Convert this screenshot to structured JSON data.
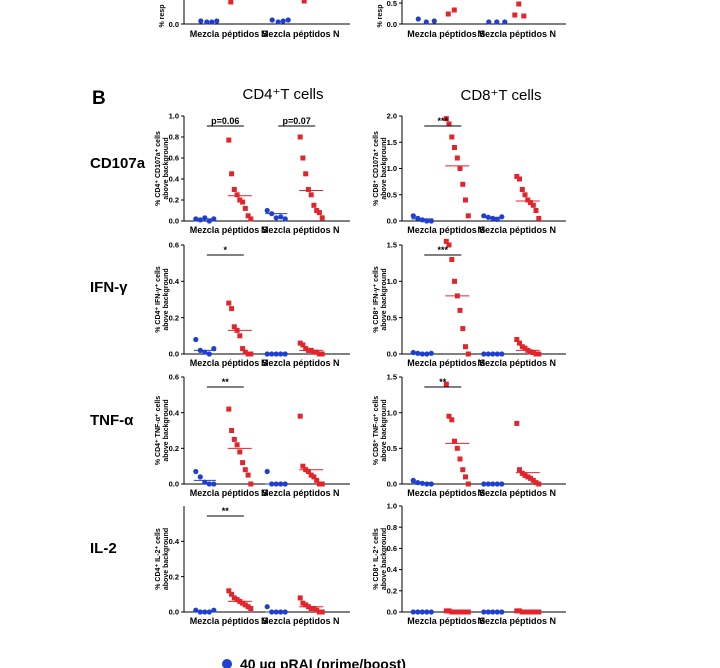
{
  "colors": {
    "blue": "#1f3fd1",
    "red": "#e3242b",
    "axis": "#000000"
  },
  "panel_letter": "B",
  "column_titles": [
    "CD4⁺T cells",
    "CD8⁺T cells"
  ],
  "top_strip": {
    "ylabels": [
      "% resp",
      "% resp"
    ],
    "categories": [
      "Mezcla péptidos  S",
      "Mezcla péptidos  N"
    ]
  },
  "legend": [
    {
      "label": "40 µg pRAI (prime/boost)",
      "color": "blue"
    }
  ],
  "chart_data": [
    {
      "type": "scatter",
      "row": "CD107a",
      "col": "CD4",
      "ylabel": "% CD4⁺ CD107a⁺ cells above background",
      "ylim": [
        0,
        1.0
      ],
      "yticks": [
        "0.0",
        "0.2",
        "0.4",
        "0.6",
        "0.8",
        "1.0"
      ],
      "categories": [
        "Mezcla péptidos  S",
        "Mezcla péptidos  N"
      ],
      "series": [
        {
          "color": "blue",
          "groups": [
            [
              0.02,
              0.01,
              0.03,
              0.0,
              0.02
            ],
            [
              0.1,
              0.07,
              0.03,
              0.04,
              0.02
            ]
          ]
        },
        {
          "color": "red",
          "groups": [
            [
              0.77,
              0.45,
              0.3,
              0.25,
              0.2,
              0.18,
              0.12,
              0.05,
              0.02
            ],
            [
              0.8,
              0.6,
              0.45,
              0.3,
              0.25,
              0.15,
              0.1,
              0.08,
              0.03
            ]
          ]
        }
      ],
      "means": [
        [
          0.02,
          0.24
        ],
        [
          0.07,
          0.29
        ]
      ],
      "significance": [
        {
          "label": "p=0.06",
          "pair": 0
        },
        {
          "label": "p=0.07",
          "pair": 1
        }
      ]
    },
    {
      "type": "scatter",
      "row": "CD107a",
      "col": "CD8",
      "ylabel": "% CD8⁺ CD107a⁺ cells above background",
      "ylim": [
        0,
        2.0
      ],
      "yticks": [
        "0.0",
        "0.5",
        "1.0",
        "1.5",
        "2.0"
      ],
      "categories": [
        "Mezcla péptidos  S",
        "Mezcla péptidos  N"
      ],
      "series": [
        {
          "color": "blue",
          "groups": [
            [
              0.1,
              0.05,
              0.02,
              0.0,
              0.0
            ],
            [
              0.1,
              0.07,
              0.05,
              0.03,
              0.08
            ]
          ]
        },
        {
          "color": "red",
          "groups": [
            [
              1.95,
              1.85,
              1.6,
              1.4,
              1.2,
              1.0,
              0.7,
              0.4,
              0.1
            ],
            [
              0.85,
              0.8,
              0.6,
              0.5,
              0.4,
              0.35,
              0.3,
              0.2,
              0.05
            ]
          ]
        }
      ],
      "means": [
        [
          0.04,
          1.05
        ],
        [
          0.07,
          0.38
        ]
      ],
      "significance": [
        {
          "label": "***",
          "pair": 0
        }
      ]
    },
    {
      "type": "scatter",
      "row": "IFN-γ",
      "col": "CD4",
      "ylabel": "% CD4⁺ IFN-γ⁺ cells above background",
      "ylim": [
        0,
        0.6
      ],
      "yticks": [
        "0.0",
        "0.2",
        "0.4",
        "0.6"
      ],
      "categories": [
        "Mezcla péptidos  S",
        "Mezcla péptidos  N"
      ],
      "series": [
        {
          "color": "blue",
          "groups": [
            [
              0.08,
              0.02,
              0.01,
              0.0,
              0.03
            ],
            [
              0.0,
              0.0,
              0.0,
              0.0,
              0.0
            ]
          ]
        },
        {
          "color": "red",
          "groups": [
            [
              0.28,
              0.25,
              0.15,
              0.13,
              0.1,
              0.03,
              0.01,
              0.0,
              0.0
            ],
            [
              0.06,
              0.05,
              0.03,
              0.02,
              0.02,
              0.01,
              0.01,
              0.0,
              0.0
            ]
          ]
        }
      ],
      "means": [
        [
          0.02,
          0.13
        ],
        [
          0.0,
          0.02
        ]
      ],
      "significance": [
        {
          "label": "*",
          "pair": 0
        }
      ]
    },
    {
      "type": "scatter",
      "row": "IFN-γ",
      "col": "CD8",
      "ylabel": "% CD8⁺ IFN-γ⁺ cells above background",
      "ylim": [
        0,
        1.5
      ],
      "yticks": [
        "0.0",
        "0.5",
        "1.0",
        "1.5"
      ],
      "categories": [
        "Mezcla péptidos  S",
        "Mezcla péptidos  N"
      ],
      "series": [
        {
          "color": "blue",
          "groups": [
            [
              0.02,
              0.01,
              0.0,
              0.0,
              0.01
            ],
            [
              0.0,
              0.0,
              0.0,
              0.0,
              0.0
            ]
          ]
        },
        {
          "color": "red",
          "groups": [
            [
              1.55,
              1.5,
              1.3,
              1.0,
              0.8,
              0.6,
              0.35,
              0.1,
              0.0
            ],
            [
              0.2,
              0.15,
              0.1,
              0.08,
              0.05,
              0.03,
              0.02,
              0.0,
              0.0
            ]
          ]
        }
      ],
      "means": [
        [
          0.01,
          0.8
        ],
        [
          0.0,
          0.05
        ]
      ],
      "significance": [
        {
          "label": "***",
          "pair": 0
        }
      ]
    },
    {
      "type": "scatter",
      "row": "TNF-α",
      "col": "CD4",
      "ylabel": "% CD4⁺ TNF-α⁺ cells above background",
      "ylim": [
        0,
        0.6
      ],
      "yticks": [
        "0.0",
        "0.2",
        "0.4",
        "0.6"
      ],
      "categories": [
        "Mezcla péptidos  S",
        "Mezcla péptidos  N"
      ],
      "series": [
        {
          "color": "blue",
          "groups": [
            [
              0.07,
              0.04,
              0.01,
              0.0,
              0.0
            ],
            [
              0.07,
              0.0,
              0.0,
              0.0,
              0.0
            ]
          ]
        },
        {
          "color": "red",
          "groups": [
            [
              0.42,
              0.3,
              0.25,
              0.22,
              0.18,
              0.12,
              0.08,
              0.05,
              0.0
            ],
            [
              0.38,
              0.1,
              0.08,
              0.07,
              0.05,
              0.04,
              0.02,
              0.0,
              0.0
            ]
          ]
        }
      ],
      "means": [
        [
          0.02,
          0.2
        ],
        [
          0.0,
          0.08
        ]
      ],
      "significance": [
        {
          "label": "**",
          "pair": 0
        }
      ]
    },
    {
      "type": "scatter",
      "row": "TNF-α",
      "col": "CD8",
      "ylabel": "% CD8⁺ TNF-α⁺ cells above background",
      "ylim": [
        0,
        1.5
      ],
      "yticks": [
        "0.0",
        "0.5",
        "1.0",
        "1.5"
      ],
      "categories": [
        "Mezcla péptidos  S",
        "Mezcla péptidos  N"
      ],
      "series": [
        {
          "color": "blue",
          "groups": [
            [
              0.05,
              0.02,
              0.01,
              0.0,
              0.0
            ],
            [
              0.0,
              0.0,
              0.0,
              0.0,
              0.0
            ]
          ]
        },
        {
          "color": "red",
          "groups": [
            [
              1.4,
              0.95,
              0.9,
              0.6,
              0.5,
              0.35,
              0.2,
              0.1,
              0.0
            ],
            [
              0.85,
              0.2,
              0.15,
              0.12,
              0.1,
              0.08,
              0.05,
              0.02,
              0.0
            ]
          ]
        }
      ],
      "means": [
        [
          0.02,
          0.57
        ],
        [
          0.0,
          0.16
        ]
      ],
      "significance": [
        {
          "label": "**",
          "pair": 0
        }
      ]
    },
    {
      "type": "scatter",
      "row": "IL-2",
      "col": "CD4",
      "ylabel": "% CD4⁺ IL-2⁺ cells above background",
      "ylim": [
        0,
        0.6
      ],
      "yticks": [
        "0.0",
        "0.2",
        "0.4"
      ],
      "categories": [
        "Mezcla péptidos  S",
        "Mezcla péptidos  N"
      ],
      "series": [
        {
          "color": "blue",
          "groups": [
            [
              0.01,
              0.0,
              0.0,
              0.0,
              0.01
            ],
            [
              0.03,
              0.0,
              0.0,
              0.0,
              0.0
            ]
          ]
        },
        {
          "color": "red",
          "groups": [
            [
              0.12,
              0.1,
              0.08,
              0.07,
              0.06,
              0.05,
              0.04,
              0.03,
              0.02
            ],
            [
              0.08,
              0.05,
              0.04,
              0.03,
              0.02,
              0.02,
              0.01,
              0.0,
              0.0
            ]
          ]
        }
      ],
      "means": [
        [
          0.0,
          0.06
        ],
        [
          0.0,
          0.03
        ]
      ],
      "significance": [
        {
          "label": "**",
          "pair": 0
        }
      ]
    },
    {
      "type": "scatter",
      "row": "IL-2",
      "col": "CD8",
      "ylabel": "% CD8⁺ IL-2⁺ cells above background",
      "ylim": [
        0,
        1.0
      ],
      "yticks": [
        "0.0",
        "0.2",
        "0.4",
        "0.6",
        "0.8",
        "1.0"
      ],
      "categories": [
        "Mezcla péptidos  S",
        "Mezcla péptidos  N"
      ],
      "series": [
        {
          "color": "blue",
          "groups": [
            [
              0.0,
              0.0,
              0.0,
              0.0,
              0.0
            ],
            [
              0.0,
              0.0,
              0.0,
              0.0,
              0.0
            ]
          ]
        },
        {
          "color": "red",
          "groups": [
            [
              0.01,
              0.01,
              0.0,
              0.0,
              0.0,
              0.0,
              0.0,
              0.0,
              0.0
            ],
            [
              0.01,
              0.01,
              0.0,
              0.0,
              0.0,
              0.0,
              0.0,
              0.0,
              0.0
            ]
          ]
        }
      ],
      "means": [
        [
          0.0,
          0.0
        ],
        [
          0.0,
          0.0
        ]
      ],
      "significance": []
    }
  ]
}
